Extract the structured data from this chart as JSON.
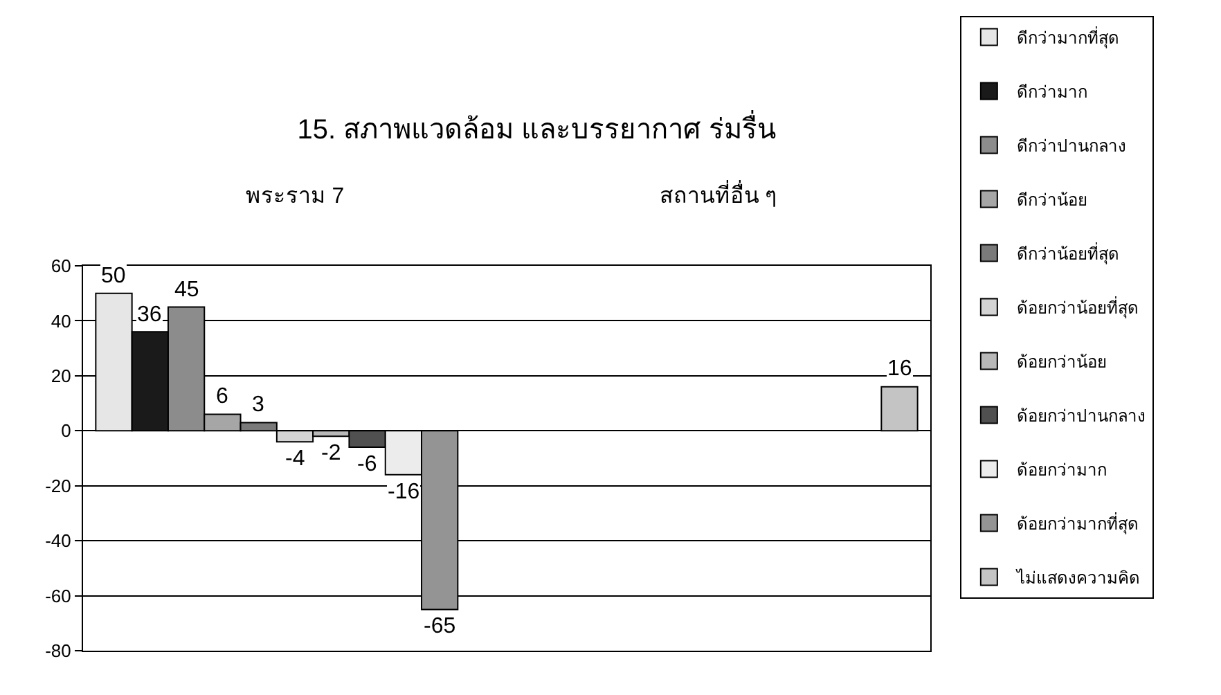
{
  "chart_data": {
    "type": "bar",
    "title": "15. สภาพแวดล้อม และบรรยากาศ ร่มรื่น",
    "categories": [
      "พระราม 7",
      "สถานที่อื่น ๆ"
    ],
    "series": [
      {
        "name": "ดีกว่ามากที่สุด",
        "color": "#e6e6e6",
        "values": [
          50,
          null
        ]
      },
      {
        "name": "ดีกว่ามาก",
        "color": "#1a1a1a",
        "values": [
          36,
          null
        ]
      },
      {
        "name": "ดีกว่าปานกลาง",
        "color": "#8c8c8c",
        "values": [
          45,
          null
        ]
      },
      {
        "name": "ดีกว่าน้อย",
        "color": "#a6a6a6",
        "values": [
          6,
          null
        ]
      },
      {
        "name": "ดีกว่าน้อยที่สุด",
        "color": "#7a7a7a",
        "values": [
          3,
          null
        ]
      },
      {
        "name": "ด้อยกว่าน้อยที่สุด",
        "color": "#d4d4d4",
        "values": [
          -4,
          null
        ]
      },
      {
        "name": "ด้อยกว่าน้อย",
        "color": "#b8b8b8",
        "values": [
          -2,
          null
        ]
      },
      {
        "name": "ด้อยกว่าปานกลาง",
        "color": "#505050",
        "values": [
          -6,
          null
        ]
      },
      {
        "name": "ด้อยกว่ามาก",
        "color": "#ececec",
        "values": [
          -16,
          null
        ]
      },
      {
        "name": "ด้อยกว่ามากที่สุด",
        "color": "#949494",
        "values": [
          -65,
          null
        ]
      },
      {
        "name": "ไม่แสดงความคิด",
        "color": "#c4c4c4",
        "values": [
          null,
          16
        ]
      }
    ],
    "ylim": [
      -80,
      60
    ],
    "yticks": [
      -80,
      -60,
      -40,
      -20,
      0,
      20,
      40,
      60
    ],
    "grid": "y",
    "legend": "right",
    "data_labels": true
  }
}
